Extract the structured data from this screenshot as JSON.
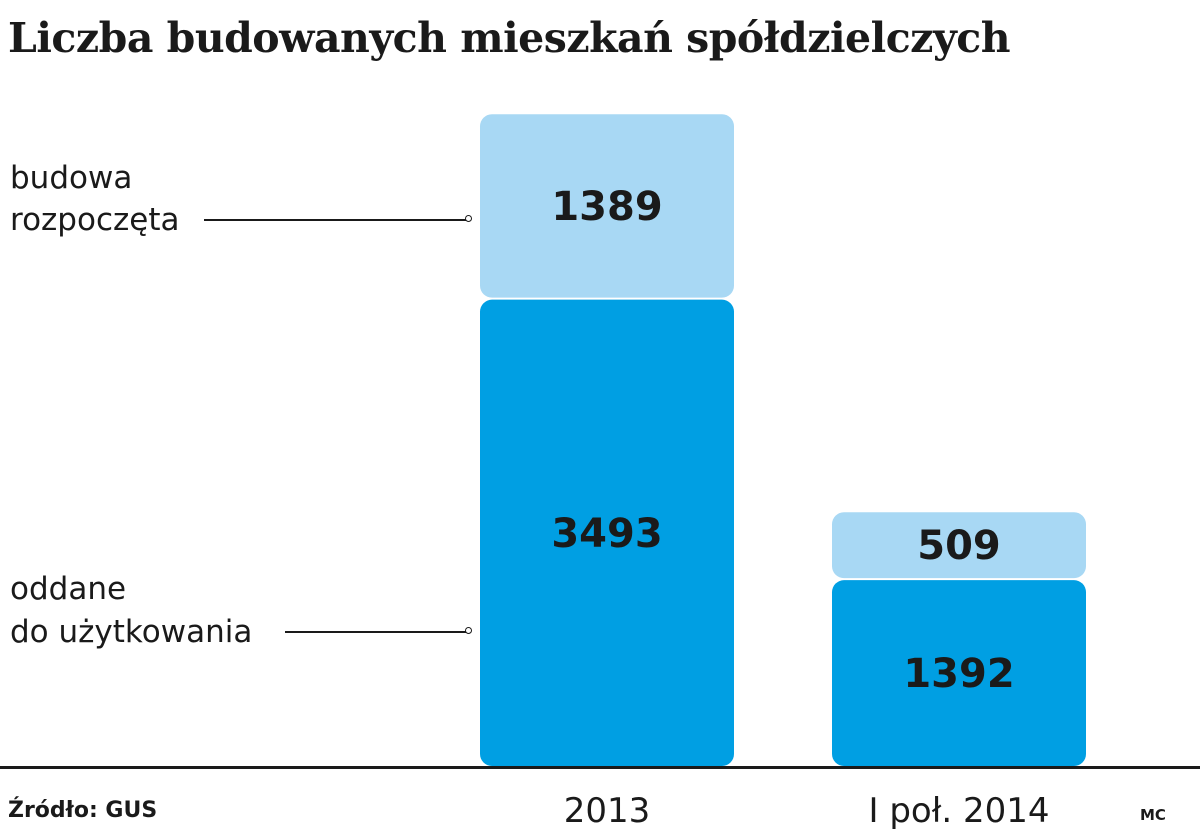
{
  "title": "Liczba budowanych mieszkań spółdzielczych",
  "source": "Źródło: GUS",
  "credit": "MC",
  "legend": {
    "started_line1": "budowa",
    "started_line2": "rozpoczęta",
    "completed_line1": "oddane",
    "completed_line2": "do użytkowania"
  },
  "colors": {
    "started": "#a8d8f4",
    "completed": "#009fe3",
    "text": "#1a1a1a"
  },
  "chart_data": {
    "type": "bar",
    "stacked": true,
    "categories": [
      "2013",
      "I poł. 2014"
    ],
    "series": [
      {
        "name": "oddane do użytkowania",
        "values": [
          3493,
          1392
        ]
      },
      {
        "name": "budowa rozpoczęta",
        "values": [
          1389,
          509
        ]
      }
    ],
    "title": "Liczba budowanych mieszkań spółdzielczych",
    "xlabel": "",
    "ylabel": "",
    "grid": false
  }
}
